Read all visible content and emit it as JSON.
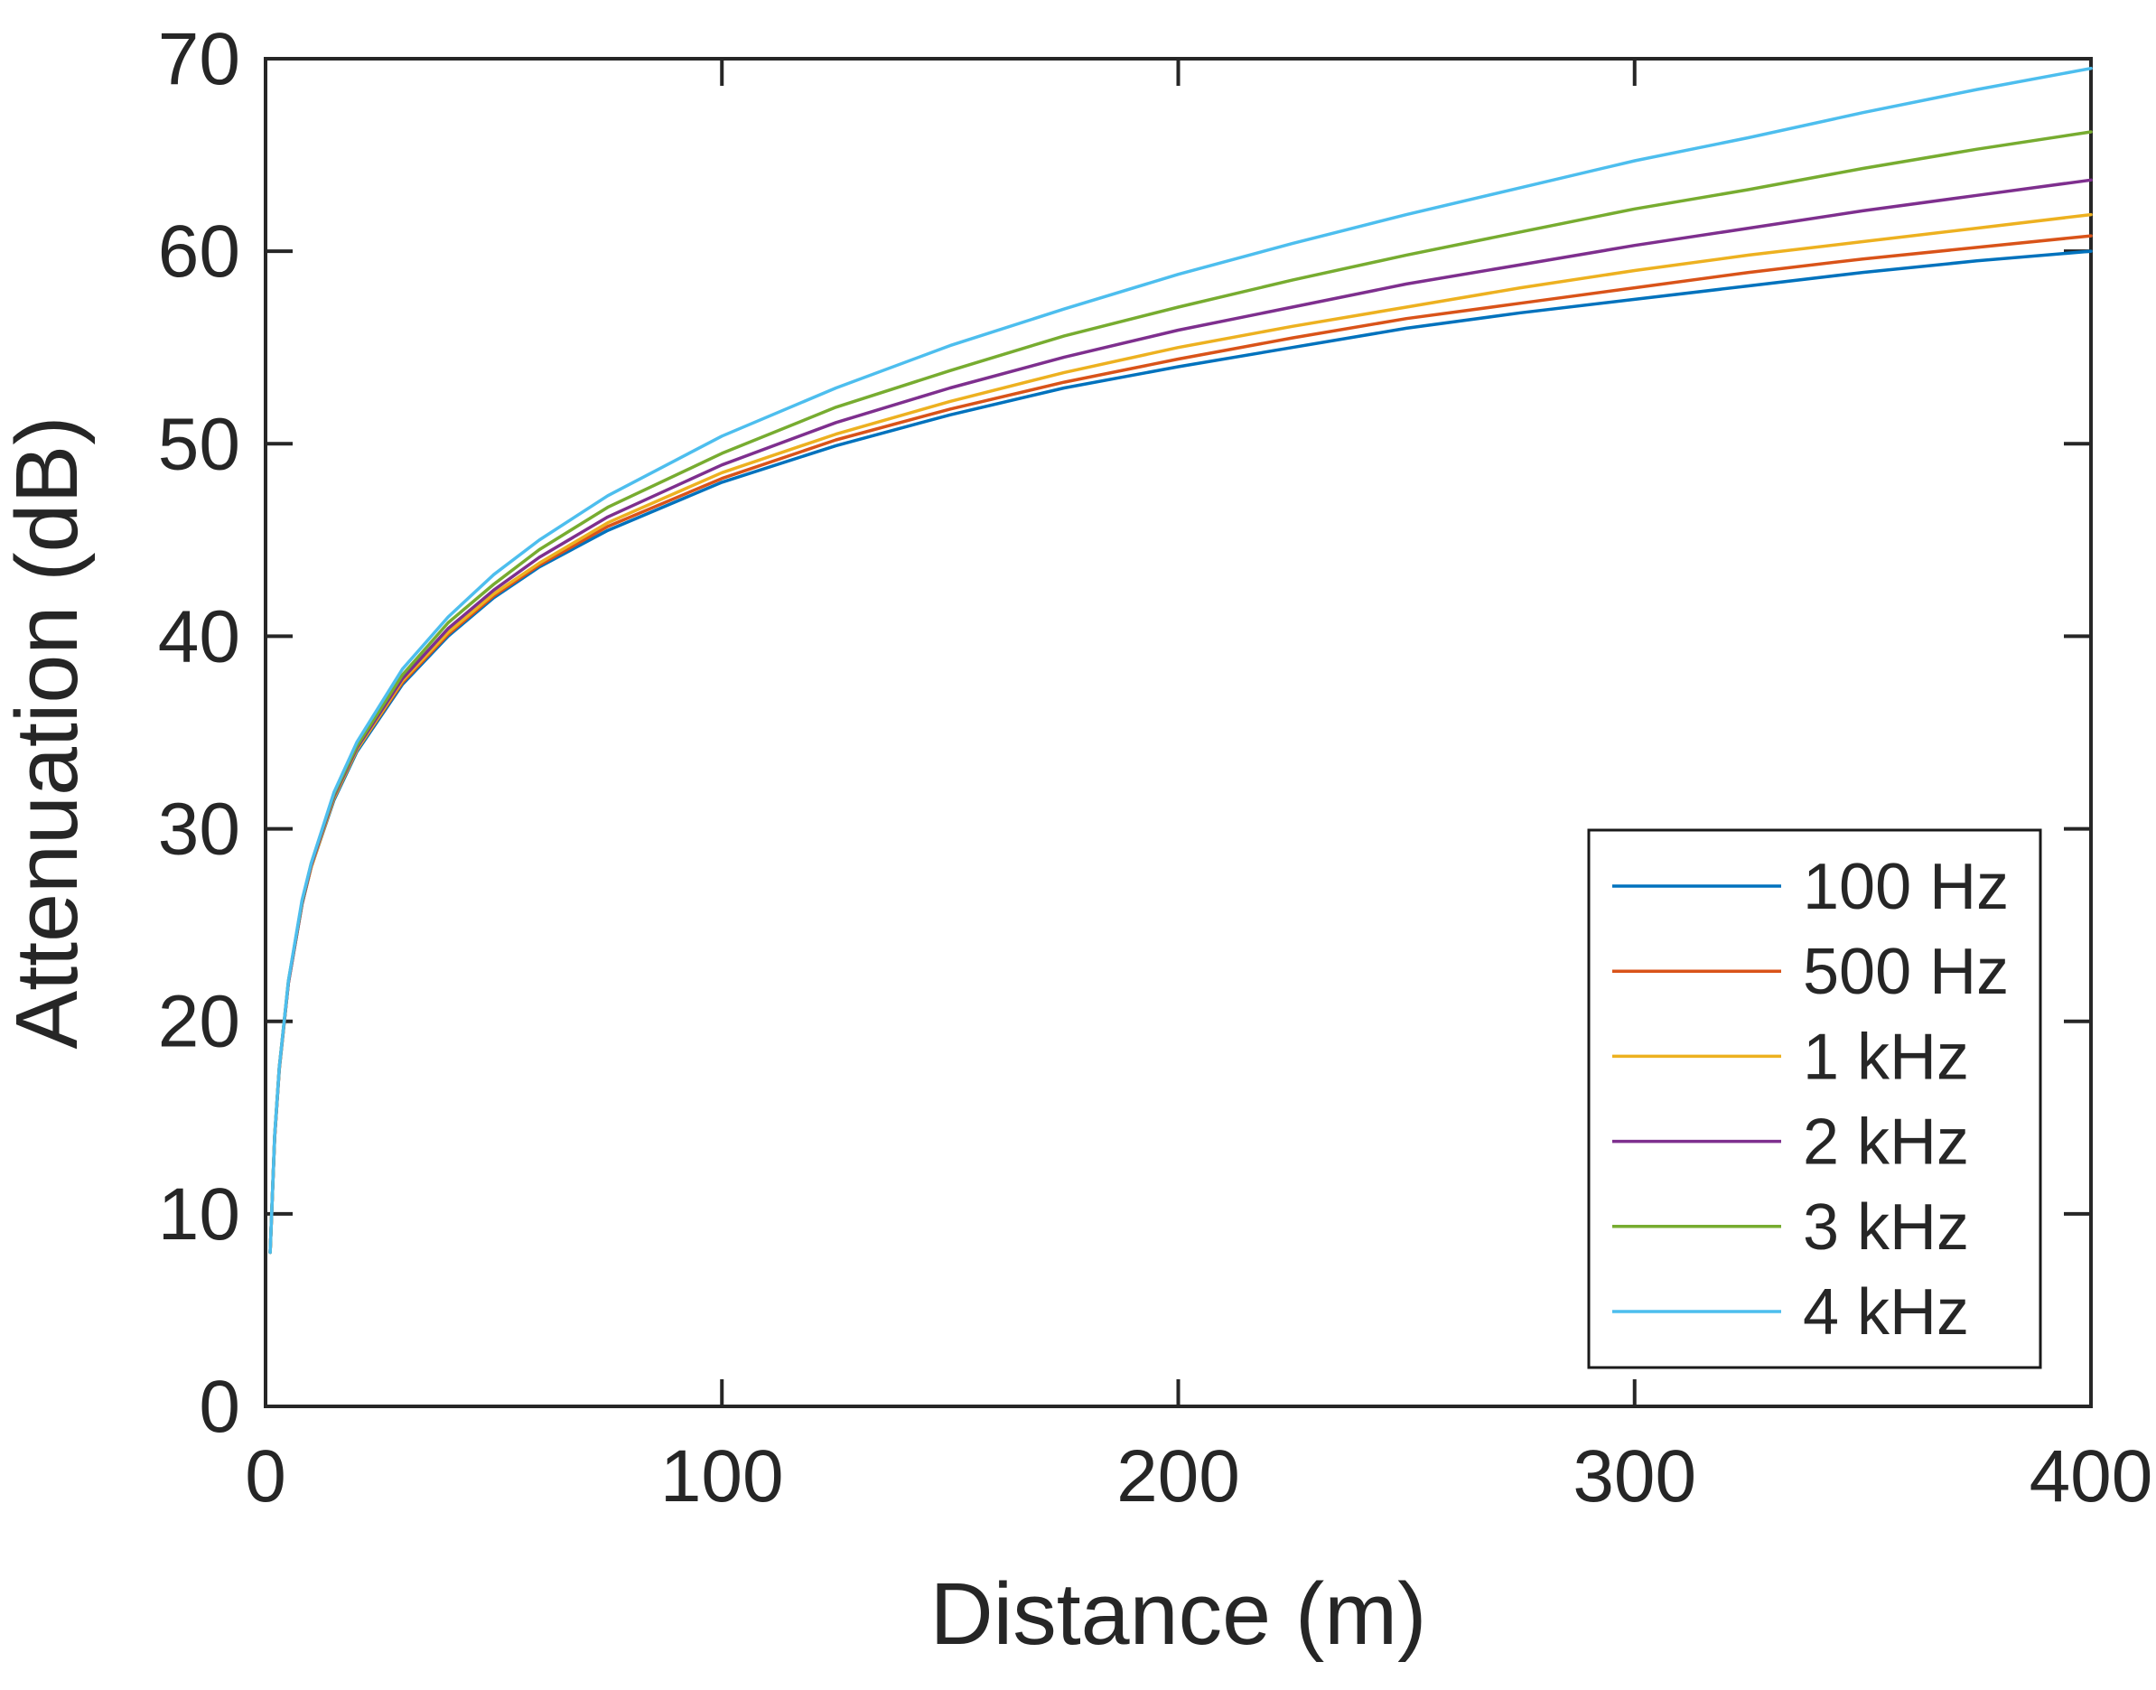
{
  "figure": {
    "background": "#ffffff",
    "axes_color": "#262626",
    "legend_border_color": "#1a1a1a",
    "legend_background": "#ffffff"
  },
  "chart_data": {
    "type": "line",
    "title": "",
    "xlabel": "Distance (m)",
    "ylabel": "Attenuation (dB)",
    "xlim": [
      0,
      400
    ],
    "ylim": [
      0,
      70
    ],
    "xticks": [
      0,
      100,
      200,
      300,
      400
    ],
    "yticks": [
      0,
      10,
      20,
      30,
      40,
      50,
      60,
      70
    ],
    "grid": false,
    "legend_position": "inside-lower-right",
    "x": [
      1,
      2,
      3,
      5,
      8,
      10,
      15,
      20,
      30,
      40,
      50,
      60,
      75,
      100,
      125,
      150,
      175,
      200,
      225,
      250,
      275,
      300,
      325,
      350,
      375,
      400
    ],
    "series": [
      {
        "name": "100 Hz",
        "color": "#0072BD",
        "values": [
          8.0,
          14.0,
          17.5,
          22.0,
          26.1,
          28.0,
          31.5,
          34.0,
          37.5,
          40.0,
          42.0,
          43.6,
          45.5,
          48.0,
          49.9,
          51.5,
          52.9,
          54.0,
          55.0,
          56.0,
          56.8,
          57.5,
          58.2,
          58.9,
          59.5,
          60.0
        ]
      },
      {
        "name": "500 Hz",
        "color": "#D95319",
        "values": [
          8.0,
          14.0,
          17.5,
          22.0,
          26.1,
          28.0,
          31.6,
          34.1,
          37.6,
          40.1,
          42.1,
          43.7,
          45.7,
          48.2,
          50.2,
          51.8,
          53.2,
          54.4,
          55.5,
          56.5,
          57.3,
          58.1,
          58.9,
          59.6,
          60.2,
          60.8
        ]
      },
      {
        "name": "1 kHz",
        "color": "#EDB120",
        "values": [
          8.0,
          14.0,
          17.6,
          22.0,
          26.1,
          28.0,
          31.6,
          34.1,
          37.7,
          40.2,
          42.2,
          43.8,
          45.9,
          48.5,
          50.5,
          52.2,
          53.7,
          55.0,
          56.1,
          57.1,
          58.1,
          59.0,
          59.8,
          60.5,
          61.2,
          61.9
        ]
      },
      {
        "name": "2 kHz",
        "color": "#7E2F8E",
        "values": [
          8.0,
          14.0,
          17.6,
          22.0,
          26.1,
          28.1,
          31.7,
          34.2,
          37.8,
          40.4,
          42.4,
          44.1,
          46.2,
          48.9,
          51.1,
          52.9,
          54.5,
          55.9,
          57.1,
          58.3,
          59.3,
          60.3,
          61.2,
          62.1,
          62.9,
          63.7
        ]
      },
      {
        "name": "3 kHz",
        "color": "#77AC30",
        "values": [
          8.0,
          14.1,
          17.6,
          22.1,
          26.2,
          28.2,
          31.8,
          34.3,
          38.0,
          40.7,
          42.7,
          44.5,
          46.7,
          49.5,
          51.9,
          53.8,
          55.6,
          57.1,
          58.5,
          59.8,
          61.0,
          62.2,
          63.2,
          64.3,
          65.3,
          66.2
        ]
      },
      {
        "name": "4 kHz",
        "color": "#4DBEEE",
        "values": [
          8.0,
          14.1,
          17.6,
          22.1,
          26.3,
          28.2,
          31.9,
          34.5,
          38.3,
          41.0,
          43.2,
          45.0,
          47.3,
          50.4,
          52.9,
          55.1,
          57.0,
          58.8,
          60.4,
          61.9,
          63.3,
          64.7,
          65.9,
          67.2,
          68.4,
          69.5
        ]
      }
    ]
  }
}
